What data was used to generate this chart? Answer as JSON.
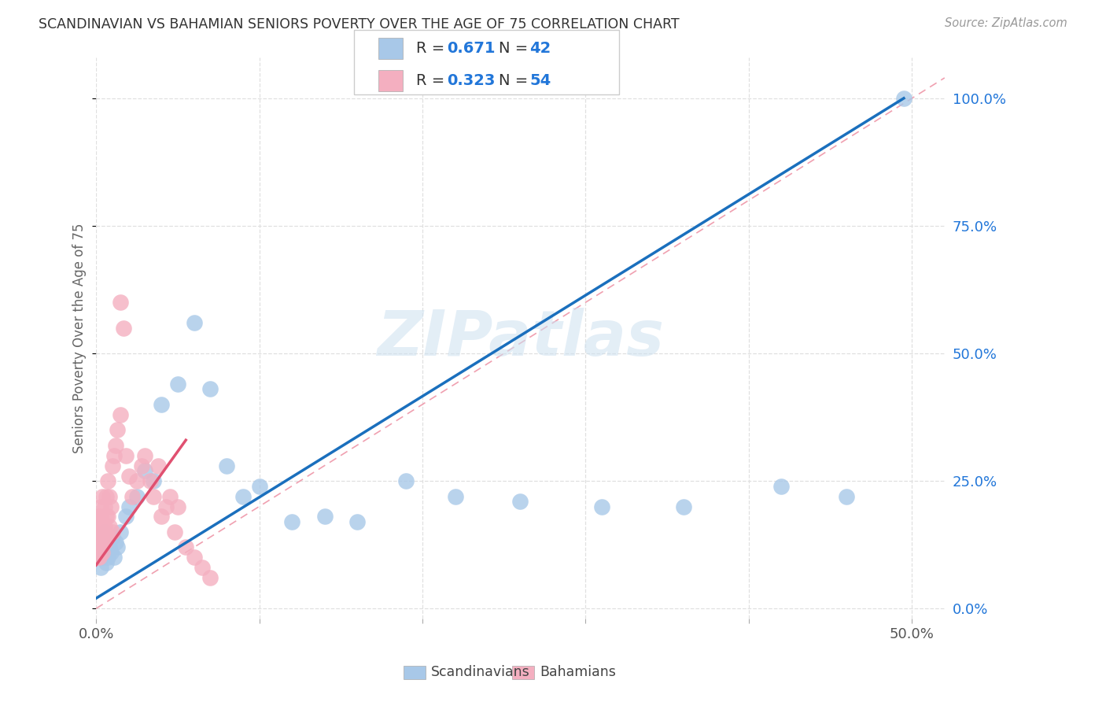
{
  "title": "SCANDINAVIAN VS BAHAMIAN SENIORS POVERTY OVER THE AGE OF 75 CORRELATION CHART",
  "source": "Source: ZipAtlas.com",
  "ylabel": "Seniors Poverty Over the Age of 75",
  "ytick_labels": [
    "0.0%",
    "25.0%",
    "50.0%",
    "75.0%",
    "100.0%"
  ],
  "ytick_values": [
    0.0,
    0.25,
    0.5,
    0.75,
    1.0
  ],
  "xlim": [
    0.0,
    0.52
  ],
  "ylim": [
    -0.02,
    1.08
  ],
  "legend_label_blue": "Scandinavians",
  "legend_label_pink": "Bahamians",
  "watermark": "ZIPatlas",
  "blue_color": "#a8c8e8",
  "pink_color": "#f4afc0",
  "blue_line_color": "#1a6fbd",
  "pink_line_color": "#e05070",
  "dashed_line_color": "#f0a0b0",
  "background_color": "#ffffff",
  "grid_color": "#e0e0e0",
  "scandinavian_x": [
    0.001,
    0.002,
    0.002,
    0.003,
    0.003,
    0.004,
    0.004,
    0.005,
    0.005,
    0.006,
    0.006,
    0.007,
    0.008,
    0.009,
    0.01,
    0.011,
    0.012,
    0.013,
    0.015,
    0.018,
    0.02,
    0.025,
    0.03,
    0.035,
    0.04,
    0.05,
    0.06,
    0.07,
    0.08,
    0.09,
    0.1,
    0.12,
    0.14,
    0.16,
    0.19,
    0.22,
    0.26,
    0.31,
    0.36,
    0.42,
    0.46,
    0.495
  ],
  "scandinavian_y": [
    0.12,
    0.1,
    0.14,
    0.08,
    0.13,
    0.1,
    0.12,
    0.11,
    0.15,
    0.09,
    0.13,
    0.1,
    0.12,
    0.11,
    0.14,
    0.1,
    0.13,
    0.12,
    0.15,
    0.18,
    0.2,
    0.22,
    0.27,
    0.25,
    0.4,
    0.44,
    0.56,
    0.43,
    0.28,
    0.22,
    0.24,
    0.17,
    0.18,
    0.17,
    0.25,
    0.22,
    0.21,
    0.2,
    0.2,
    0.24,
    0.22,
    1.0
  ],
  "bahamian_x": [
    0.001,
    0.001,
    0.001,
    0.001,
    0.002,
    0.002,
    0.002,
    0.002,
    0.003,
    0.003,
    0.003,
    0.003,
    0.004,
    0.004,
    0.004,
    0.004,
    0.005,
    0.005,
    0.005,
    0.006,
    0.006,
    0.006,
    0.007,
    0.007,
    0.007,
    0.008,
    0.008,
    0.009,
    0.01,
    0.01,
    0.011,
    0.012,
    0.013,
    0.015,
    0.015,
    0.017,
    0.018,
    0.02,
    0.022,
    0.025,
    0.028,
    0.03,
    0.033,
    0.035,
    0.038,
    0.04,
    0.043,
    0.045,
    0.048,
    0.05,
    0.055,
    0.06,
    0.065,
    0.07
  ],
  "bahamian_y": [
    0.1,
    0.12,
    0.15,
    0.18,
    0.1,
    0.12,
    0.14,
    0.17,
    0.12,
    0.15,
    0.18,
    0.2,
    0.11,
    0.14,
    0.17,
    0.22,
    0.13,
    0.16,
    0.2,
    0.14,
    0.18,
    0.22,
    0.14,
    0.18,
    0.25,
    0.16,
    0.22,
    0.2,
    0.15,
    0.28,
    0.3,
    0.32,
    0.35,
    0.38,
    0.6,
    0.55,
    0.3,
    0.26,
    0.22,
    0.25,
    0.28,
    0.3,
    0.25,
    0.22,
    0.28,
    0.18,
    0.2,
    0.22,
    0.15,
    0.2,
    0.12,
    0.1,
    0.08,
    0.06
  ],
  "blue_line_x": [
    0.0,
    0.495
  ],
  "blue_line_y": [
    0.02,
    1.0
  ],
  "pink_line_x": [
    0.0,
    0.055
  ],
  "pink_line_y": [
    0.085,
    0.33
  ]
}
